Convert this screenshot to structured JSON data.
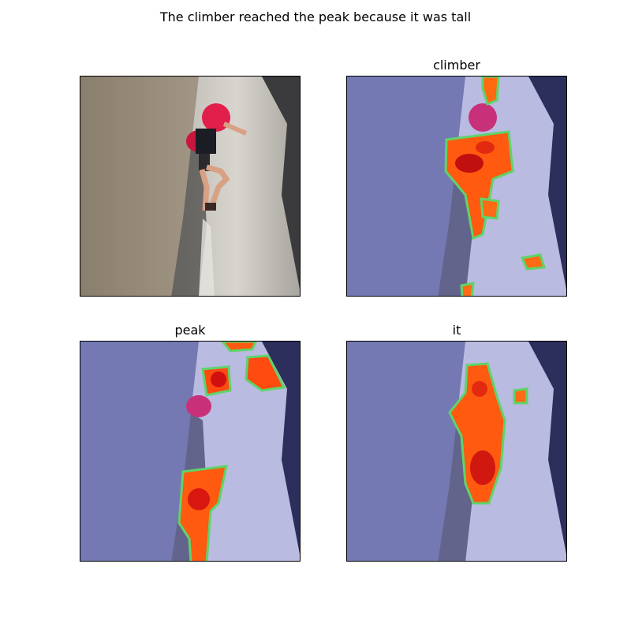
{
  "figure": {
    "title": "The climber reached the peak because it was tall",
    "panels": [
      {
        "title": "",
        "kind": "original"
      },
      {
        "title": "climber",
        "kind": "heatmap"
      },
      {
        "title": "peak",
        "kind": "heatmap"
      },
      {
        "title": "it",
        "kind": "heatmap"
      }
    ]
  },
  "colors": {
    "rock_light": "#cfccc4",
    "rock_dark": "#7d7466",
    "backpack": "#e0204a",
    "tint": "#6f73b8",
    "heat_core": "#d01010",
    "heat_mid": "#ff5a10",
    "heat_edge": "#5fd36a"
  }
}
